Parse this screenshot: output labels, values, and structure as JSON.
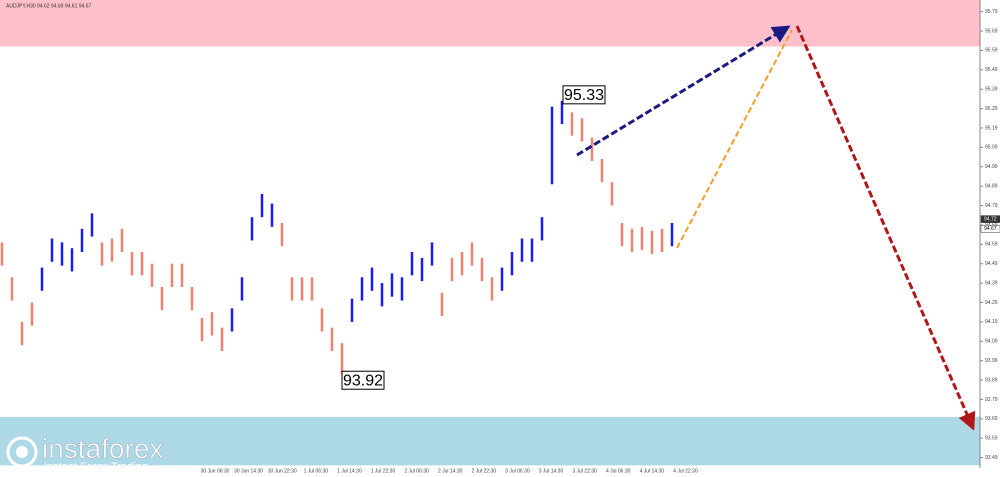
{
  "chart_data": {
    "type": "ohlc",
    "title": "AUDJPY,H30  94.62 94.69 94.61 94.67",
    "high": [
      94.6,
      94.42,
      94.19,
      94.29,
      94.47,
      94.62,
      94.6,
      94.57,
      94.67,
      94.75,
      94.6,
      94.62,
      94.67,
      94.55,
      94.55,
      94.49,
      94.37,
      94.49,
      94.49,
      94.37,
      94.21,
      94.24,
      94.16,
      94.26,
      94.42,
      94.73,
      94.85,
      94.8,
      94.7,
      94.42,
      94.42,
      94.42,
      94.26,
      94.16,
      94.08,
      94.31,
      94.42,
      94.47,
      94.39,
      94.44,
      94.42,
      94.55,
      94.52,
      94.6,
      94.34,
      94.52,
      94.55,
      94.6,
      94.52,
      94.42,
      94.47,
      94.55,
      94.62,
      94.62,
      94.73,
      95.3,
      95.33,
      95.27,
      95.24,
      95.14,
      95.03,
      94.91,
      94.7,
      94.67,
      94.68,
      94.66,
      94.67,
      94.7
    ],
    "low": [
      94.48,
      94.3,
      94.07,
      94.17,
      94.35,
      94.5,
      94.48,
      94.45,
      94.55,
      94.63,
      94.48,
      94.5,
      94.55,
      94.43,
      94.43,
      94.37,
      94.25,
      94.37,
      94.37,
      94.25,
      94.09,
      94.12,
      94.04,
      94.14,
      94.3,
      94.61,
      94.73,
      94.68,
      94.58,
      94.3,
      94.3,
      94.3,
      94.14,
      94.04,
      93.92,
      94.19,
      94.3,
      94.35,
      94.27,
      94.32,
      94.3,
      94.43,
      94.4,
      94.48,
      94.22,
      94.4,
      94.43,
      94.48,
      94.4,
      94.3,
      94.35,
      94.43,
      94.5,
      94.5,
      94.61,
      94.9,
      95.21,
      95.15,
      95.12,
      95.02,
      94.91,
      94.79,
      94.58,
      94.55,
      94.56,
      94.54,
      94.55,
      94.58
    ],
    "rising": [
      false,
      false,
      false,
      false,
      true,
      true,
      true,
      true,
      true,
      true,
      false,
      false,
      false,
      false,
      false,
      false,
      false,
      false,
      false,
      false,
      false,
      false,
      false,
      true,
      true,
      true,
      true,
      true,
      false,
      false,
      false,
      false,
      false,
      false,
      false,
      true,
      true,
      true,
      true,
      true,
      true,
      true,
      true,
      true,
      false,
      false,
      false,
      false,
      false,
      false,
      true,
      true,
      true,
      true,
      true,
      true,
      true,
      false,
      false,
      false,
      false,
      false,
      false,
      false,
      false,
      false,
      false,
      true
    ],
    "up_color": "#1a1aff",
    "down_color": "#f08070",
    "x_labels": [
      "30 Jun 06:30",
      "30 Jun 14:30",
      "30 Jun 22:30",
      "1 Jul 06:30",
      "1 Jul 14:30",
      "1 Jul 22:30",
      "2 Jul 06:30",
      "2 Jul 14:30",
      "2 Jul 22:30",
      "3 Jul 06:30",
      "3 Jul 14:30",
      "3 Jul 22:30",
      "4 Jul 06:30",
      "4 Jul 14:30",
      "4 Jul 22:30"
    ],
    "ylim": [
      93.39,
      95.85
    ],
    "yticks": [
      95.79,
      95.69,
      95.59,
      95.49,
      95.39,
      95.29,
      95.19,
      95.09,
      94.99,
      94.89,
      94.79,
      94.69,
      94.59,
      94.49,
      94.39,
      94.29,
      94.19,
      94.09,
      93.99,
      93.89,
      93.79,
      93.69,
      93.59,
      93.49
    ],
    "zones": [
      {
        "from": 95.61,
        "to": 95.85,
        "color": "#ffc0cb"
      },
      {
        "from": 93.45,
        "to": 93.7,
        "color": "#add8e6"
      }
    ],
    "annotations": [
      95.33,
      93.92
    ],
    "price_tags": [
      94.72,
      94.67
    ]
  },
  "logo": {
    "name": "instaforex",
    "tagline": "Instant Forex Trading"
  }
}
